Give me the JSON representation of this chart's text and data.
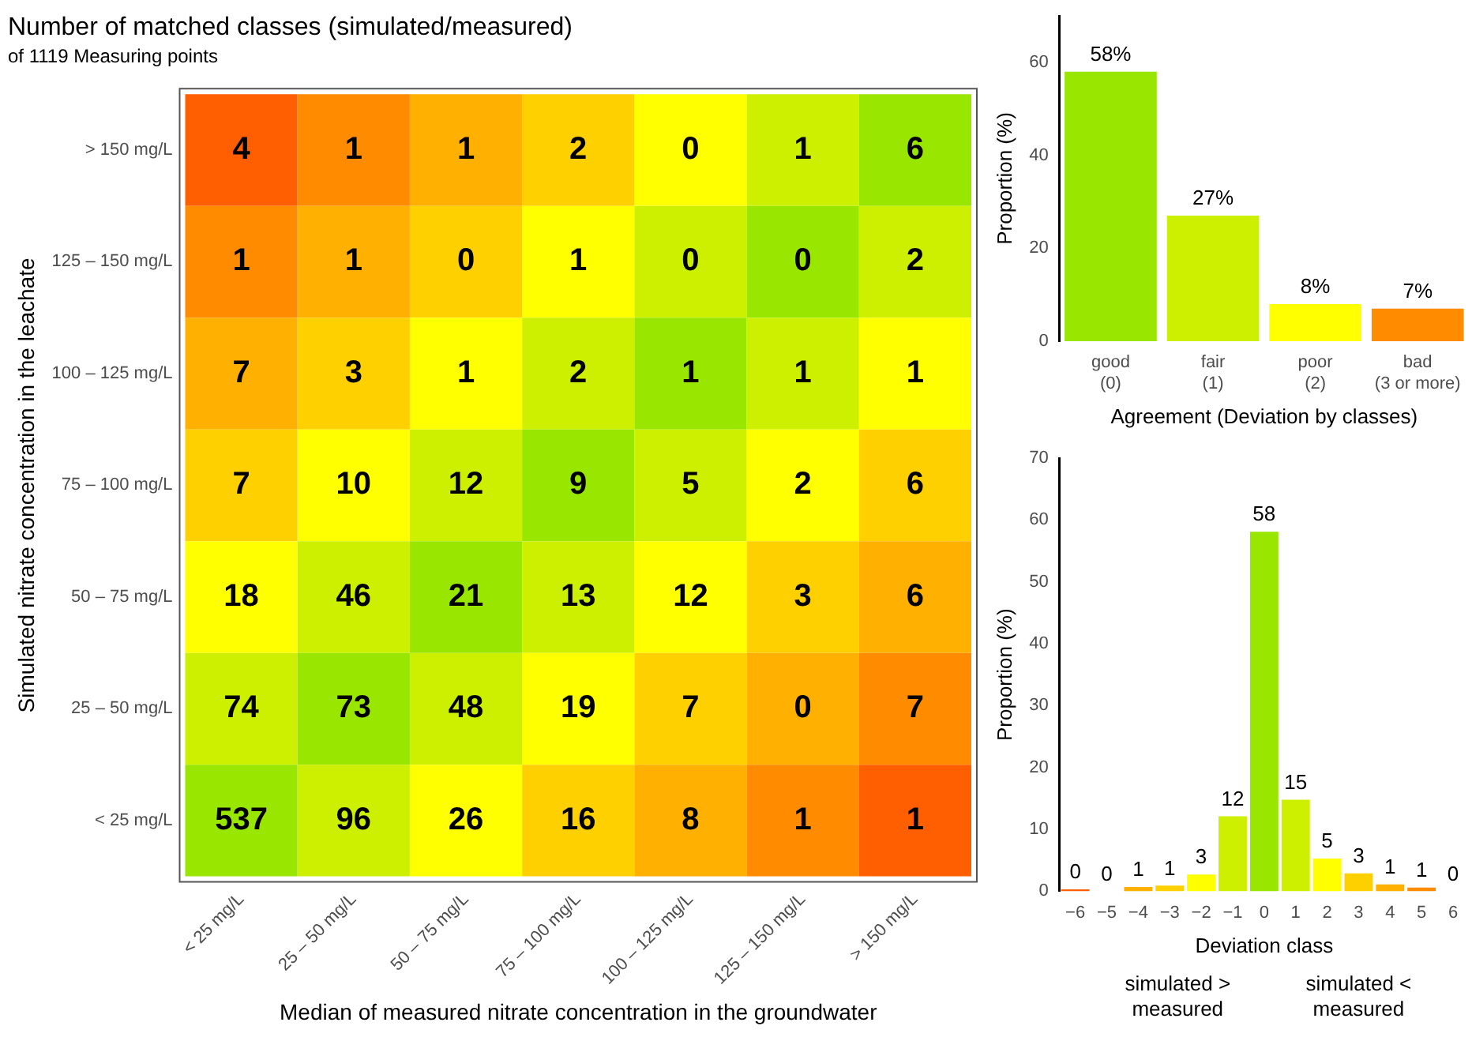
{
  "chart_data": [
    {
      "type": "heatmap",
      "title": "Number of matched classes (simulated/measured)",
      "subtitle": "of 1119 Measuring points",
      "xlabel": "Median of measured nitrate concentration in the groundwater",
      "ylabel": "Simulated nitrate concentration in the leachate",
      "categories": [
        "< 25 mg/L",
        "25 – 50 mg/L",
        "50 – 75 mg/L",
        "75 – 100 mg/L",
        "100 – 125 mg/L",
        "125 – 150 mg/L",
        "> 150 mg/L"
      ],
      "y_categories": [
        "> 150 mg/L",
        "125 – 150 mg/L",
        "100 – 125 mg/L",
        "75 – 100 mg/L",
        "50 – 75 mg/L",
        "25 – 50 mg/L",
        "< 25 mg/L"
      ],
      "cells": [
        [
          4,
          1,
          1,
          2,
          0,
          1,
          6
        ],
        [
          1,
          1,
          0,
          1,
          0,
          0,
          2
        ],
        [
          7,
          3,
          1,
          2,
          1,
          1,
          1
        ],
        [
          7,
          10,
          12,
          9,
          5,
          2,
          6
        ],
        [
          18,
          46,
          21,
          13,
          12,
          3,
          6
        ],
        [
          74,
          73,
          48,
          19,
          7,
          0,
          7
        ],
        [
          537,
          96,
          26,
          16,
          8,
          1,
          1
        ]
      ],
      "data_labels": true,
      "colors": [
        [
          "#ff5f00",
          "#ff8c00",
          "#ffb000",
          "#ffd000",
          "#ffff00",
          "#ccf000",
          "#99e600"
        ],
        [
          "#ff8c00",
          "#ffb000",
          "#ffd000",
          "#ffff00",
          "#ccf000",
          "#99e600",
          "#ccf000"
        ],
        [
          "#ffb000",
          "#ffd000",
          "#ffff00",
          "#ccf000",
          "#99e600",
          "#ccf000",
          "#ffff00"
        ],
        [
          "#ffd000",
          "#ffff00",
          "#ccf000",
          "#99e600",
          "#ccf000",
          "#ffff00",
          "#ffd000"
        ],
        [
          "#ffff00",
          "#ccf000",
          "#99e600",
          "#ccf000",
          "#ffff00",
          "#ffd000",
          "#ffb000"
        ],
        [
          "#ccf000",
          "#99e600",
          "#ccf000",
          "#ffff00",
          "#ffd000",
          "#ffb000",
          "#ff8c00"
        ],
        [
          "#99e600",
          "#ccf000",
          "#ffff00",
          "#ffd000",
          "#ffb000",
          "#ff8c00",
          "#ff5f00"
        ]
      ]
    },
    {
      "type": "bar",
      "xlabel": "Agreement (Deviation by classes)",
      "ylabel": "Proportion (%)",
      "categories": [
        "good\n(0)",
        "fair\n(1)",
        "poor\n(2)",
        "bad\n(3 or more)"
      ],
      "values": [
        58,
        27,
        8,
        7
      ],
      "value_labels": [
        "58%",
        "27%",
        "8%",
        "7%"
      ],
      "colors": [
        "#99e600",
        "#ccf000",
        "#ffff00",
        "#ff8c00"
      ],
      "ylim": [
        0,
        70
      ],
      "yticks": [
        0,
        20,
        40,
        60
      ],
      "grid": false,
      "legend": false
    },
    {
      "type": "bar",
      "xlabel": "Deviation class",
      "ylabel": "Proportion (%)",
      "categories": [
        "−6",
        "−5",
        "−4",
        "−3",
        "−2",
        "−1",
        "0",
        "1",
        "2",
        "3",
        "4",
        "5",
        "6"
      ],
      "values": [
        0.3,
        0,
        0.7,
        0.9,
        2.7,
        12.1,
        58.1,
        14.8,
        5.3,
        2.9,
        1.1,
        0.6,
        0
      ],
      "value_labels": [
        "0",
        "0",
        "1",
        "1",
        "3",
        "12",
        "58",
        "15",
        "5",
        "3",
        "1",
        "1",
        "0"
      ],
      "colors": [
        "#ff5f00",
        "#ff8c00",
        "#ffb000",
        "#ffd000",
        "#ffff00",
        "#ccf000",
        "#99e600",
        "#ccf000",
        "#ffff00",
        "#ffd000",
        "#ffb000",
        "#ff8c00",
        "#ff5f00"
      ],
      "ylim": [
        0,
        70
      ],
      "yticks": [
        0,
        10,
        20,
        30,
        40,
        50,
        60,
        70
      ],
      "grid": false,
      "legend": false,
      "annotations": [
        "simulated >\nmeasured",
        "simulated <\nmeasured"
      ]
    }
  ]
}
